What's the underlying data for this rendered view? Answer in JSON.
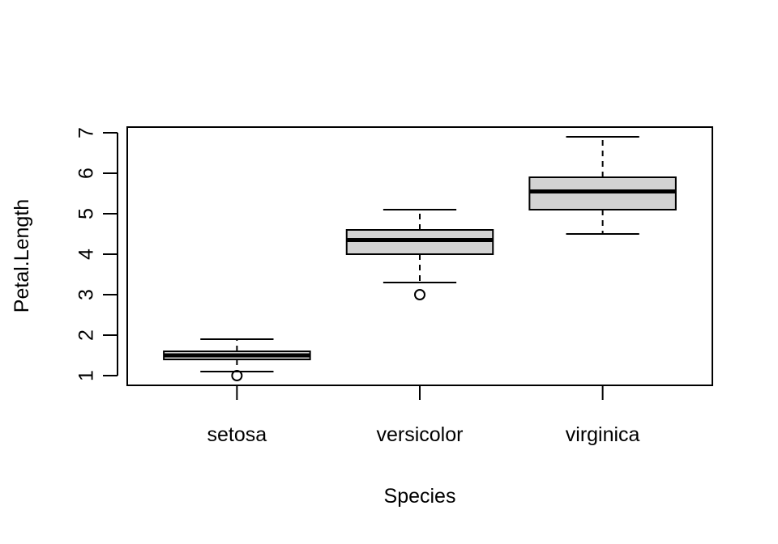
{
  "chart_data": {
    "type": "boxplot",
    "title": "",
    "xlabel": "Species",
    "ylabel": "Petal.Length",
    "categories": [
      "setosa",
      "versicolor",
      "virginica"
    ],
    "ylim": [
      0.76,
      7.14
    ],
    "yticks": [
      1,
      2,
      3,
      4,
      5,
      6,
      7
    ],
    "boxes": [
      {
        "category": "setosa",
        "whisker_low": 1.1,
        "q1": 1.4,
        "median": 1.5,
        "q3": 1.6,
        "whisker_high": 1.9,
        "outliers": [
          1.0
        ]
      },
      {
        "category": "versicolor",
        "whisker_low": 3.3,
        "q1": 4.0,
        "median": 4.35,
        "q3": 4.6,
        "whisker_high": 5.1,
        "outliers": [
          3.0
        ]
      },
      {
        "category": "virginica",
        "whisker_low": 4.5,
        "q1": 5.1,
        "median": 5.55,
        "q3": 5.9,
        "whisker_high": 6.9,
        "outliers": []
      }
    ],
    "colors": {
      "box_fill": "#d3d3d3",
      "stroke": "#000000",
      "background": "#ffffff"
    },
    "grid": false,
    "legend": "none"
  }
}
